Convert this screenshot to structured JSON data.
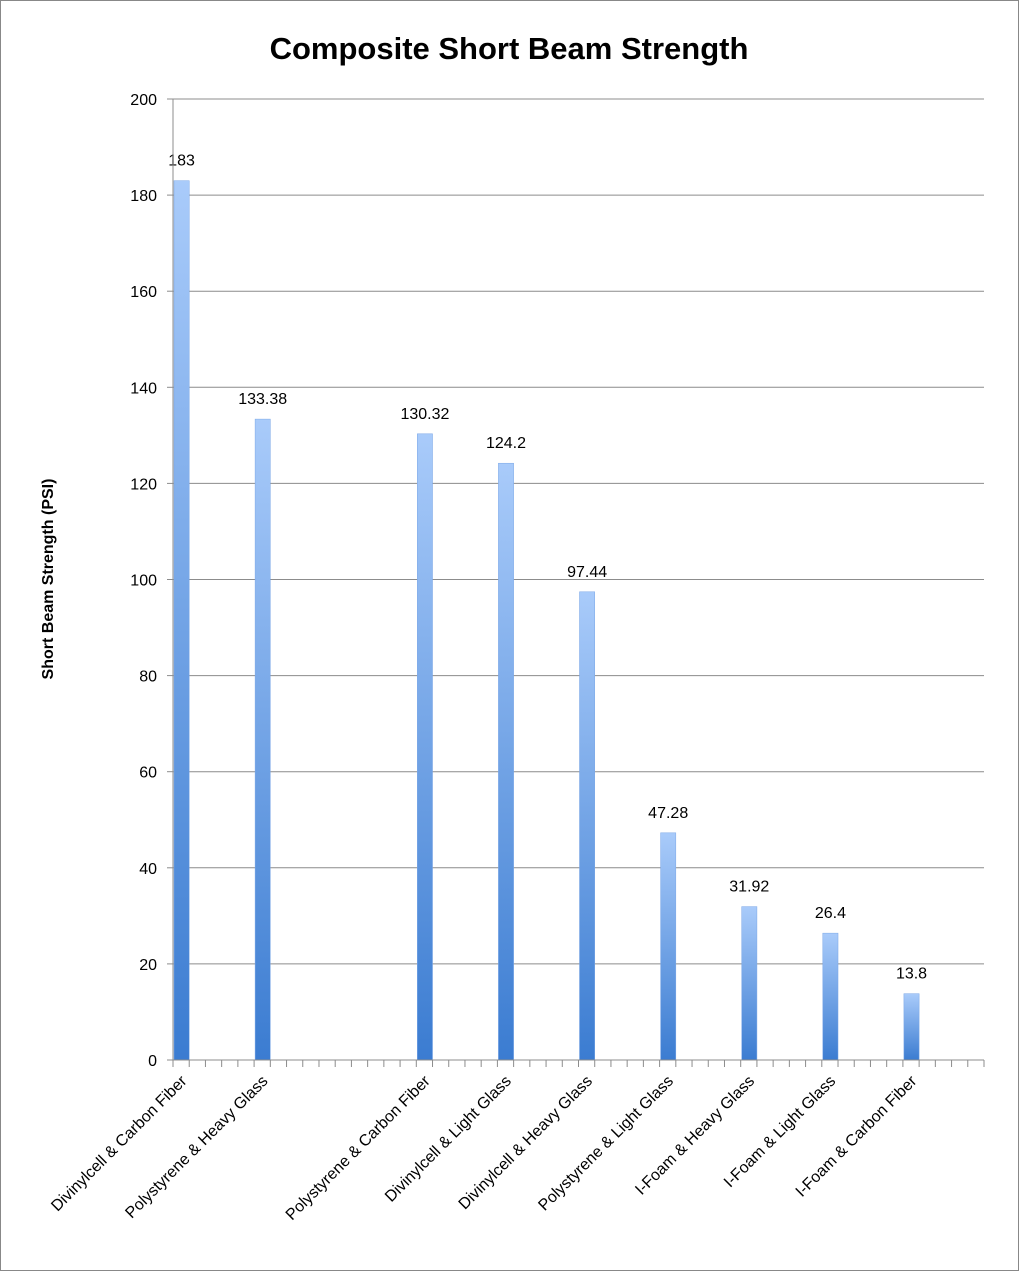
{
  "chart_data": {
    "type": "bar",
    "title": "Composite Short Beam Strength",
    "xlabel": "",
    "ylabel": "Short Beam Strength (PSI)",
    "ylim": [
      0,
      200
    ],
    "yticks": [
      0,
      20,
      40,
      60,
      80,
      100,
      120,
      140,
      160,
      180,
      200
    ],
    "grid": true,
    "legend": "none",
    "categories": [
      "Divinylcell & Carbon Fiber",
      "Polystyrene & Heavy Glass",
      "Polystyrene & Carbon Fiber",
      "Divinylcell & Light Glass",
      "Divinylcell & Heavy Glass",
      "Polystyrene & Light Glass",
      "I-Foam & Heavy Glass",
      "I-Foam & Light Glass",
      "I-Foam & Carbon Fiber"
    ],
    "values": [
      183,
      133.38,
      130.32,
      124.2,
      97.44,
      47.28,
      31.92,
      26.4,
      13.8
    ],
    "data_labels": [
      "183",
      "133.38",
      "130.32",
      "124.2",
      "97.44",
      "47.28",
      "31.92",
      "26.4",
      "13.8"
    ],
    "colors": {
      "bar_top": "#a9cbfa",
      "bar_bottom": "#3b7cd1",
      "grid": "#8c8c8c"
    }
  }
}
